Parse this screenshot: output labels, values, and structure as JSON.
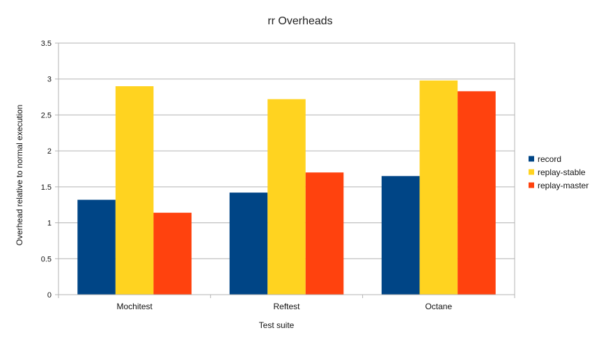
{
  "chart_data": {
    "type": "bar",
    "title": "rr Overheads",
    "xlabel": "Test suite",
    "ylabel": "Overhead relative to normal execution",
    "categories": [
      "Mochitest",
      "Reftest",
      "Octane"
    ],
    "series": [
      {
        "name": "record",
        "color": "#004586",
        "values": [
          1.32,
          1.42,
          1.65
        ]
      },
      {
        "name": "replay-stable",
        "color": "#ffd320",
        "values": [
          2.9,
          2.72,
          2.98
        ]
      },
      {
        "name": "replay-master",
        "color": "#ff420e",
        "values": [
          1.14,
          1.7,
          2.83
        ]
      }
    ],
    "ylim": [
      0,
      3.5
    ],
    "yticks": [
      "0",
      "0.5",
      "1",
      "1.5",
      "2",
      "2.5",
      "3",
      "3.5"
    ],
    "grid": true,
    "legend_position": "right"
  }
}
